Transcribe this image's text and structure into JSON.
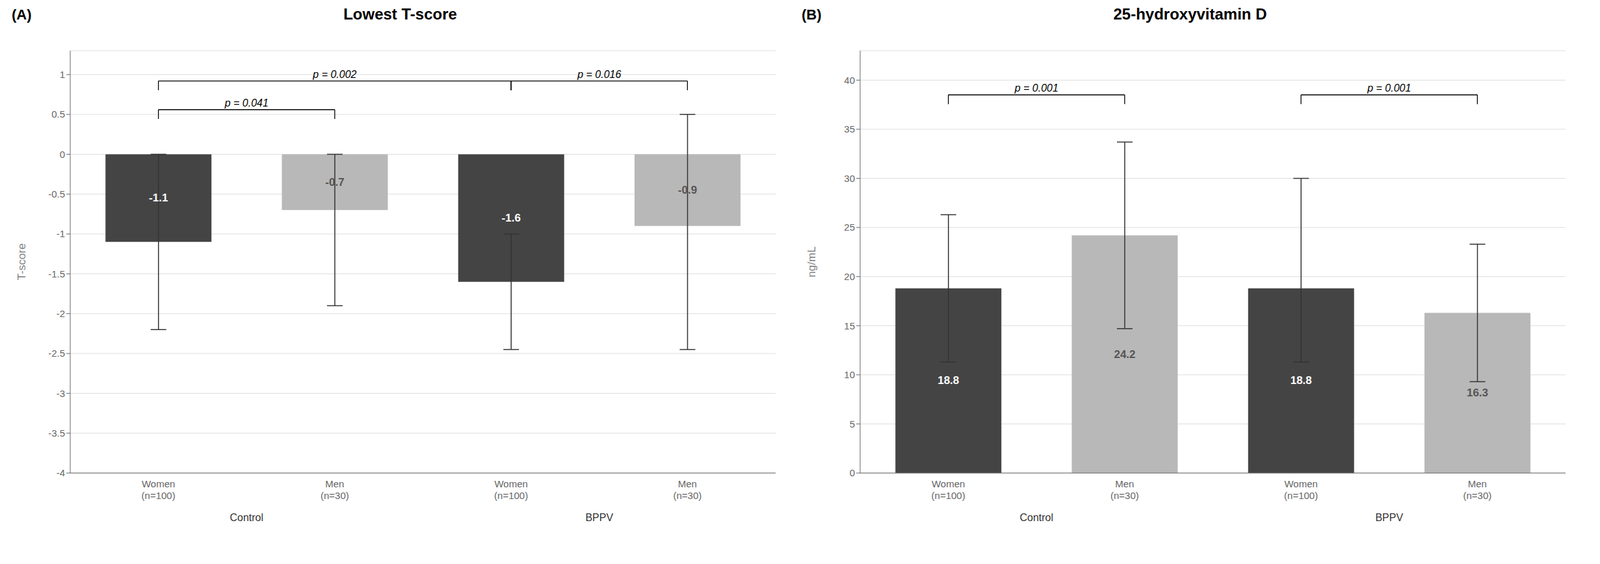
{
  "chart_data": [
    {
      "type": "bar",
      "title": "Lowest T-score",
      "panel_label": "(A)",
      "ylabel": "T-score",
      "categories": [
        "Women\n(n=100)",
        "Men\n(n=30)",
        "Women\n(n=100)",
        "Men\n(n=30)"
      ],
      "groups": [
        "Control",
        "BPPV"
      ],
      "values": [
        -1.1,
        -0.7,
        -1.6,
        -0.9
      ],
      "errors_up": [
        1.1,
        0.7,
        0.6,
        1.4
      ],
      "errors_down": [
        1.1,
        1.2,
        0.85,
        1.55
      ],
      "colors": [
        "#444444",
        "#b8b8b8",
        "#444444",
        "#b8b8b8"
      ],
      "data_labels": true,
      "annotations": [
        {
          "x1": 0,
          "x2": 1,
          "y": 0.56,
          "label": "p = 0.041"
        },
        {
          "x1": 0,
          "x2": 2,
          "y": 0.92,
          "label": "p = 0.002"
        },
        {
          "x1": 2,
          "x2": 3,
          "y": 0.92,
          "label": "p = 0.016"
        }
      ],
      "ylim": [
        -4,
        1.3
      ],
      "yticks": [
        1,
        0.5,
        0,
        -0.5,
        -1,
        -1.5,
        -2,
        -2.5,
        -3,
        -3.5,
        -4
      ],
      "grid": true
    },
    {
      "type": "bar",
      "title": "25-hydroxyvitamin D",
      "panel_label": "(B)",
      "ylabel": "ng/mL",
      "categories": [
        "Women\n(n=100)",
        "Men\n(n=30)",
        "Women\n(n=100)",
        "Men\n(n=30)"
      ],
      "groups": [
        "Control",
        "BPPV"
      ],
      "values": [
        18.8,
        24.2,
        18.8,
        16.3
      ],
      "errors_up": [
        7.5,
        9.5,
        11.2,
        7.0
      ],
      "errors_down": [
        7.5,
        9.5,
        7.5,
        7.0
      ],
      "colors": [
        "#444444",
        "#b8b8b8",
        "#444444",
        "#b8b8b8"
      ],
      "data_labels": true,
      "annotations": [
        {
          "x1": 0,
          "x2": 1,
          "y": 38.5,
          "label": "p = 0.001"
        },
        {
          "x1": 2,
          "x2": 3,
          "y": 38.5,
          "label": "p = 0.001"
        }
      ],
      "ylim": [
        0,
        43
      ],
      "yticks": [
        0,
        5,
        10,
        15,
        20,
        25,
        30,
        35,
        40
      ],
      "grid": true
    }
  ]
}
